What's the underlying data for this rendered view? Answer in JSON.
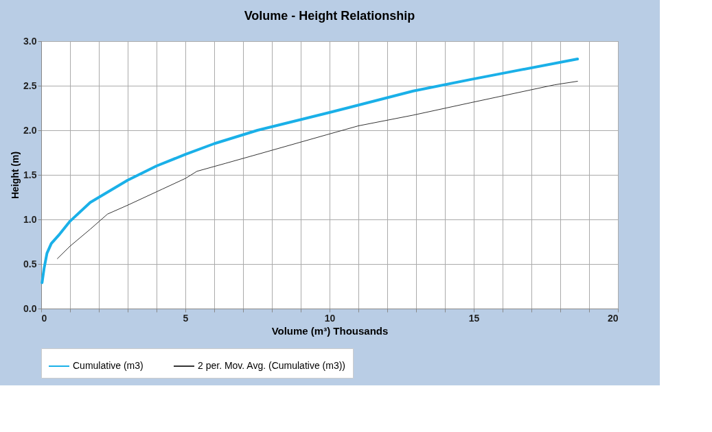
{
  "chart_data": {
    "type": "line",
    "title": "Volume - Height Relationship",
    "xlabel": "Volume (m³) Thousands",
    "ylabel": "Height (m)",
    "xlim": [
      0,
      20
    ],
    "ylim": [
      0,
      3
    ],
    "xticks": [
      0,
      {
        "value": 1,
        "label": null
      },
      {
        "value": 2,
        "label": null
      },
      {
        "value": 3,
        "label": null
      },
      {
        "value": 4,
        "label": null
      },
      5,
      {
        "value": 6,
        "label": null
      },
      {
        "value": 7,
        "label": null
      },
      {
        "value": 8,
        "label": null
      },
      {
        "value": 9,
        "label": null
      },
      10,
      {
        "value": 11,
        "label": null
      },
      {
        "value": 12,
        "label": null
      },
      {
        "value": 13,
        "label": null
      },
      {
        "value": 14,
        "label": null
      },
      15,
      {
        "value": 16,
        "label": null
      },
      {
        "value": 17,
        "label": null
      },
      {
        "value": 18,
        "label": null
      },
      {
        "value": 19,
        "label": null
      },
      20
    ],
    "yticks": [
      {
        "value": 0,
        "label": "0.0"
      },
      {
        "value": 0.5,
        "label": "0.5"
      },
      {
        "value": 1,
        "label": "1.0"
      },
      {
        "value": 1.5,
        "label": "1.5"
      },
      {
        "value": 2,
        "label": "2.0"
      },
      {
        "value": 2.5,
        "label": "2.5"
      },
      {
        "value": 3,
        "label": "3.0"
      }
    ],
    "grid": true,
    "legend": "bottom",
    "marker": "none",
    "line_style": "solid",
    "series": [
      {
        "name": "Cumulative (m3)",
        "color": "#1ab0e8",
        "x": [
          0.03,
          0.1,
          0.2,
          0.35,
          0.6,
          1.0,
          1.7,
          3.0,
          4.0,
          5.0,
          6.0,
          7.5,
          10,
          12.9,
          14.9,
          16.5,
          18.6
        ],
        "values": [
          0.29,
          0.45,
          0.62,
          0.73,
          0.82,
          0.98,
          1.19,
          1.44,
          1.6,
          1.73,
          1.85,
          2.0,
          2.2,
          2.44,
          2.57,
          2.67,
          2.8
        ]
      },
      {
        "name": "2 per. Mov. Avg. (Cumulative (m3))",
        "color": "#333333",
        "x": [
          0.56,
          1.0,
          1.7,
          2.3,
          3.0,
          4.2,
          5.0,
          5.4,
          6.4,
          7.5,
          9.9,
          11.0,
          12.9,
          14.9,
          17.8,
          18.6
        ],
        "values": [
          0.56,
          0.7,
          0.89,
          1.06,
          1.16,
          1.34,
          1.46,
          1.54,
          1.63,
          1.73,
          1.95,
          2.05,
          2.17,
          2.31,
          2.51,
          2.55
        ]
      }
    ]
  }
}
